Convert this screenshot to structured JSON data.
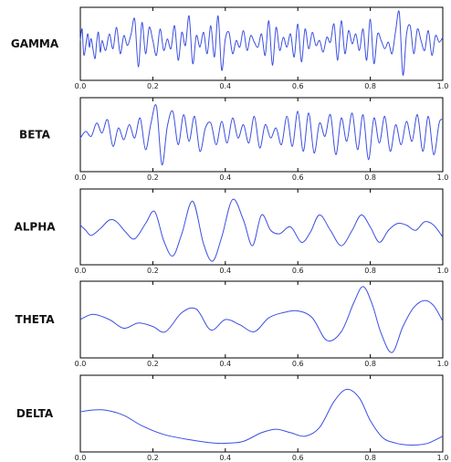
{
  "colors": {
    "signal": "#3b4fe0",
    "axes": "#000000",
    "background": "#ffffff"
  },
  "chart_data": [
    {
      "type": "line",
      "title": "",
      "ylabel": "GAMMA",
      "xlabel": "",
      "xlim": [
        0.0,
        1.0
      ],
      "ylim": [
        -1.0,
        1.0
      ],
      "grid": false,
      "x_ticks": [
        "0.0",
        "0.2",
        "0.4",
        "0.6",
        "0.8",
        "1.0"
      ],
      "series": [
        {
          "x": [
            0.0,
            0.005,
            0.01,
            0.02,
            0.025,
            0.03,
            0.04,
            0.045,
            0.05,
            0.055,
            0.06,
            0.07,
            0.08,
            0.09,
            0.1,
            0.11,
            0.12,
            0.13,
            0.14,
            0.15,
            0.16,
            0.17,
            0.18,
            0.19,
            0.2,
            0.21,
            0.22,
            0.23,
            0.24,
            0.25,
            0.26,
            0.27,
            0.28,
            0.29,
            0.3,
            0.31,
            0.32,
            0.33,
            0.34,
            0.35,
            0.36,
            0.37,
            0.38,
            0.39,
            0.4,
            0.41,
            0.42,
            0.43,
            0.44,
            0.45,
            0.46,
            0.47,
            0.48,
            0.49,
            0.5,
            0.51,
            0.52,
            0.53,
            0.54,
            0.55,
            0.56,
            0.57,
            0.58,
            0.59,
            0.6,
            0.61,
            0.62,
            0.63,
            0.64,
            0.65,
            0.66,
            0.67,
            0.68,
            0.69,
            0.7,
            0.71,
            0.72,
            0.73,
            0.74,
            0.75,
            0.76,
            0.77,
            0.78,
            0.79,
            0.8,
            0.81,
            0.82,
            0.83,
            0.84,
            0.85,
            0.86,
            0.87,
            0.88,
            0.89,
            0.9,
            0.91,
            0.92,
            0.93,
            0.94,
            0.95,
            0.96,
            0.97,
            0.98,
            0.99,
            1.0
          ],
          "y": [
            0.1,
            0.45,
            -0.35,
            0.3,
            -0.1,
            0.15,
            -0.45,
            0.05,
            0.35,
            -0.25,
            0.1,
            -0.2,
            0.3,
            -0.15,
            0.5,
            -0.3,
            0.25,
            -0.05,
            0.3,
            0.75,
            -0.7,
            0.65,
            -0.3,
            0.5,
            0.1,
            -0.35,
            0.45,
            -0.2,
            0.15,
            -0.15,
            0.55,
            -0.5,
            0.35,
            -0.05,
            0.85,
            -0.6,
            0.25,
            -0.1,
            0.35,
            -0.3,
            0.55,
            -0.4,
            0.85,
            -0.8,
            0.15,
            0.35,
            -0.3,
            0.1,
            -0.1,
            0.4,
            -0.2,
            0.25,
            0.05,
            -0.1,
            0.3,
            -0.35,
            0.7,
            -0.65,
            0.5,
            -0.2,
            0.2,
            -0.1,
            0.3,
            -0.4,
            0.6,
            -0.55,
            0.45,
            -0.15,
            0.35,
            -0.05,
            0.1,
            -0.25,
            0.2,
            0.05,
            0.6,
            -0.5,
            0.7,
            -0.3,
            0.4,
            0.0,
            0.3,
            -0.2,
            0.45,
            -0.5,
            0.75,
            -0.6,
            0.3,
            0.1,
            -0.15,
            0.05,
            -0.3,
            0.4,
            0.95,
            -0.95,
            0.3,
            0.55,
            -0.3,
            0.45,
            0.1,
            -0.2,
            0.4,
            -0.35,
            0.25,
            0.05,
            0.2
          ]
        }
      ]
    },
    {
      "type": "line",
      "title": "",
      "ylabel": "BETA",
      "xlabel": "",
      "xlim": [
        0.0,
        1.0
      ],
      "ylim": [
        -1.0,
        1.0
      ],
      "grid": false,
      "x_ticks": [
        "0.0",
        "0.2",
        "0.4",
        "0.6",
        "0.8",
        "1.0"
      ],
      "series": [
        {
          "x": [
            0.0,
            0.015,
            0.03,
            0.045,
            0.06,
            0.075,
            0.09,
            0.105,
            0.12,
            0.135,
            0.15,
            0.165,
            0.18,
            0.195,
            0.21,
            0.225,
            0.24,
            0.255,
            0.27,
            0.285,
            0.3,
            0.315,
            0.33,
            0.345,
            0.36,
            0.375,
            0.39,
            0.405,
            0.42,
            0.435,
            0.45,
            0.465,
            0.48,
            0.495,
            0.51,
            0.525,
            0.54,
            0.555,
            0.57,
            0.585,
            0.6,
            0.615,
            0.63,
            0.645,
            0.66,
            0.675,
            0.69,
            0.705,
            0.72,
            0.735,
            0.75,
            0.765,
            0.78,
            0.795,
            0.81,
            0.825,
            0.84,
            0.855,
            0.87,
            0.885,
            0.9,
            0.915,
            0.93,
            0.945,
            0.96,
            0.975,
            0.99,
            1.0
          ],
          "y": [
            -0.1,
            0.1,
            -0.05,
            0.35,
            0.05,
            0.45,
            -0.35,
            0.2,
            -0.15,
            0.3,
            -0.1,
            0.5,
            -0.45,
            0.35,
            0.85,
            -0.9,
            0.25,
            0.7,
            -0.3,
            0.6,
            -0.2,
            0.55,
            -0.5,
            0.2,
            0.35,
            -0.3,
            0.4,
            -0.25,
            0.5,
            -0.1,
            0.3,
            -0.25,
            0.55,
            -0.4,
            0.3,
            -0.1,
            0.2,
            -0.3,
            0.55,
            -0.35,
            0.7,
            -0.5,
            0.65,
            -0.55,
            0.35,
            -0.05,
            0.6,
            -0.6,
            0.5,
            -0.2,
            0.65,
            -0.45,
            0.6,
            -0.75,
            0.5,
            -0.25,
            0.55,
            -0.5,
            0.3,
            -0.3,
            0.4,
            -0.2,
            0.6,
            -0.5,
            0.55,
            -0.6,
            0.35,
            0.45
          ]
        }
      ]
    },
    {
      "type": "line",
      "title": "",
      "ylabel": "ALPHA",
      "xlabel": "",
      "xlim": [
        0.0,
        1.0
      ],
      "ylim": [
        -1.0,
        1.0
      ],
      "grid": false,
      "x_ticks": [
        "0.0",
        "0.2",
        "0.4",
        "0.6",
        "0.8",
        "1.0"
      ],
      "series": [
        {
          "x": [
            0.0,
            0.015,
            0.03,
            0.055,
            0.08,
            0.1,
            0.125,
            0.15,
            0.18,
            0.205,
            0.23,
            0.255,
            0.28,
            0.31,
            0.34,
            0.365,
            0.39,
            0.42,
            0.45,
            0.475,
            0.5,
            0.525,
            0.55,
            0.58,
            0.61,
            0.635,
            0.66,
            0.69,
            0.72,
            0.75,
            0.775,
            0.8,
            0.825,
            0.85,
            0.875,
            0.9,
            0.925,
            0.95,
            0.975,
            1.0
          ],
          "y": [
            0.05,
            -0.1,
            -0.25,
            -0.05,
            0.2,
            0.15,
            -0.15,
            -0.35,
            0.1,
            0.45,
            -0.4,
            -0.85,
            -0.2,
            0.75,
            -0.5,
            -1.0,
            -0.3,
            0.8,
            0.2,
            -0.55,
            0.35,
            -0.1,
            -0.2,
            0.0,
            -0.45,
            -0.15,
            0.35,
            -0.1,
            -0.55,
            -0.1,
            0.35,
            0.0,
            -0.45,
            -0.1,
            0.1,
            0.05,
            -0.1,
            0.15,
            0.05,
            -0.3
          ]
        }
      ]
    },
    {
      "type": "line",
      "title": "",
      "ylabel": "THETA",
      "xlabel": "",
      "xlim": [
        0.0,
        1.0
      ],
      "ylim": [
        -1.0,
        1.0
      ],
      "grid": false,
      "x_ticks": [
        "0.0",
        "0.2",
        "0.4",
        "0.6",
        "0.8",
        "1.0"
      ],
      "series": [
        {
          "x": [
            0.0,
            0.035,
            0.08,
            0.12,
            0.16,
            0.2,
            0.235,
            0.28,
            0.32,
            0.36,
            0.4,
            0.44,
            0.48,
            0.52,
            0.56,
            0.6,
            0.64,
            0.68,
            0.72,
            0.755,
            0.78,
            0.805,
            0.83,
            0.86,
            0.89,
            0.92,
            0.95,
            0.975,
            1.0
          ],
          "y": [
            0.0,
            0.15,
            0.0,
            -0.25,
            -0.1,
            -0.2,
            -0.35,
            0.2,
            0.3,
            -0.3,
            0.0,
            -0.15,
            -0.35,
            0.05,
            0.2,
            0.25,
            0.05,
            -0.6,
            -0.35,
            0.5,
            0.95,
            0.45,
            -0.4,
            -0.95,
            -0.2,
            0.35,
            0.55,
            0.4,
            -0.05
          ]
        }
      ]
    },
    {
      "type": "line",
      "title": "",
      "ylabel": "DELTA",
      "xlabel": "",
      "xlim": [
        0.0,
        1.0
      ],
      "ylim": [
        -1.0,
        1.0
      ],
      "grid": false,
      "x_ticks": [
        "0.0",
        "0.2",
        "0.4",
        "0.6",
        "0.8",
        "1.0"
      ],
      "series": [
        {
          "x": [
            0.0,
            0.03,
            0.07,
            0.12,
            0.17,
            0.23,
            0.3,
            0.37,
            0.41,
            0.45,
            0.5,
            0.54,
            0.58,
            0.62,
            0.66,
            0.7,
            0.735,
            0.77,
            0.8,
            0.835,
            0.87,
            0.9,
            0.93,
            0.96,
            1.0
          ],
          "y": [
            0.05,
            0.1,
            0.1,
            -0.05,
            -0.35,
            -0.6,
            -0.75,
            -0.85,
            -0.85,
            -0.8,
            -0.55,
            -0.45,
            -0.55,
            -0.65,
            -0.4,
            0.35,
            0.7,
            0.45,
            -0.2,
            -0.7,
            -0.85,
            -0.9,
            -0.9,
            -0.85,
            -0.65
          ]
        }
      ]
    }
  ]
}
